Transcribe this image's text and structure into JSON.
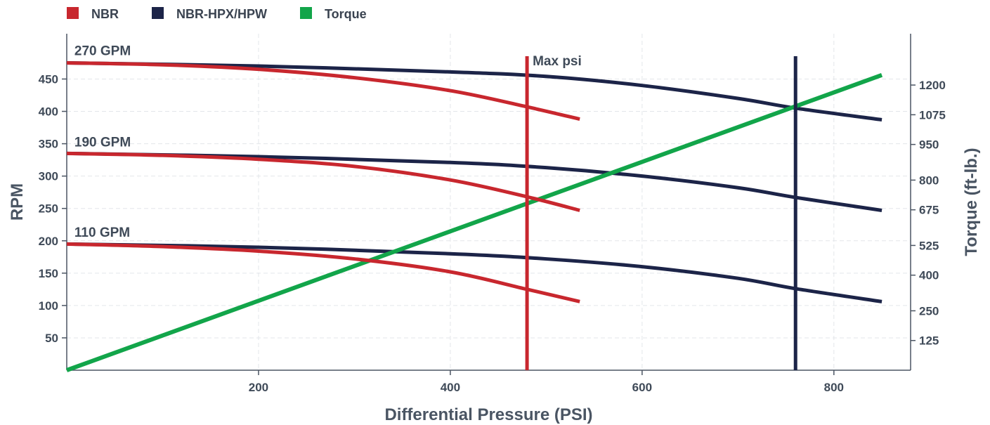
{
  "chart_data": {
    "type": "line",
    "xlabel": "Differential Pressure (PSI)",
    "ylabel": "RPM",
    "y2label": "Torque (ft-lb.)",
    "xlim": [
      0,
      880
    ],
    "ylim": [
      0,
      520
    ],
    "y2lim": [
      0,
      1416
    ],
    "x_ticks": [
      200,
      400,
      600,
      800
    ],
    "y_ticks": [
      50,
      100,
      150,
      200,
      250,
      300,
      350,
      400,
      450
    ],
    "y2_ticks": [
      125,
      250,
      400,
      525,
      675,
      800,
      950,
      1075,
      1200
    ],
    "grid": true,
    "legend_position": "top-left",
    "legend": [
      {
        "name": "NBR",
        "color": "#c8272e"
      },
      {
        "name": "NBR-HPX/HPW",
        "color": "#1c2448"
      },
      {
        "name": "Torque",
        "color": "#12a54a"
      }
    ],
    "series": [
      {
        "group": "NBR",
        "color": "#c8272e",
        "axis": "left",
        "points": [
          [
            0,
            475
          ],
          [
            100,
            472
          ],
          [
            200,
            465
          ],
          [
            300,
            452
          ],
          [
            400,
            432
          ],
          [
            480,
            407
          ],
          [
            535,
            388
          ]
        ]
      },
      {
        "group": "NBR",
        "color": "#c8272e",
        "axis": "left",
        "points": [
          [
            0,
            335
          ],
          [
            100,
            332
          ],
          [
            200,
            326
          ],
          [
            300,
            315
          ],
          [
            400,
            294
          ],
          [
            480,
            268
          ],
          [
            535,
            247
          ]
        ]
      },
      {
        "group": "NBR",
        "color": "#c8272e",
        "axis": "left",
        "points": [
          [
            0,
            195
          ],
          [
            100,
            191
          ],
          [
            200,
            184
          ],
          [
            300,
            172
          ],
          [
            400,
            152
          ],
          [
            480,
            125
          ],
          [
            535,
            106
          ]
        ]
      },
      {
        "group": "NBR-HPX/HPW",
        "color": "#1c2448",
        "axis": "left",
        "points": [
          [
            0,
            475
          ],
          [
            200,
            470
          ],
          [
            400,
            461
          ],
          [
            500,
            454
          ],
          [
            600,
            440
          ],
          [
            700,
            420
          ],
          [
            760,
            405
          ],
          [
            850,
            387
          ]
        ]
      },
      {
        "group": "NBR-HPX/HPW",
        "color": "#1c2448",
        "axis": "left",
        "points": [
          [
            0,
            335
          ],
          [
            200,
            330
          ],
          [
            400,
            321
          ],
          [
            500,
            313
          ],
          [
            600,
            300
          ],
          [
            700,
            282
          ],
          [
            760,
            267
          ],
          [
            850,
            247
          ]
        ]
      },
      {
        "group": "NBR-HPX/HPW",
        "color": "#1c2448",
        "axis": "left",
        "points": [
          [
            0,
            195
          ],
          [
            200,
            190
          ],
          [
            400,
            180
          ],
          [
            500,
            172
          ],
          [
            600,
            160
          ],
          [
            700,
            142
          ],
          [
            760,
            126
          ],
          [
            850,
            106
          ]
        ]
      },
      {
        "group": "Torque",
        "color": "#12a54a",
        "axis": "right",
        "points": [
          [
            0,
            0
          ],
          [
            850,
            1242
          ]
        ]
      }
    ],
    "reference_lines": [
      {
        "x": 480,
        "color": "#c8272e",
        "label": "Max psi"
      },
      {
        "x": 760,
        "color": "#1c2448",
        "label": ""
      }
    ],
    "annotations": [
      {
        "text": "270 GPM",
        "x": 8,
        "y": 487
      },
      {
        "text": "190 GPM",
        "x": 8,
        "y": 346
      },
      {
        "text": "110 GPM",
        "x": 8,
        "y": 206
      }
    ]
  }
}
